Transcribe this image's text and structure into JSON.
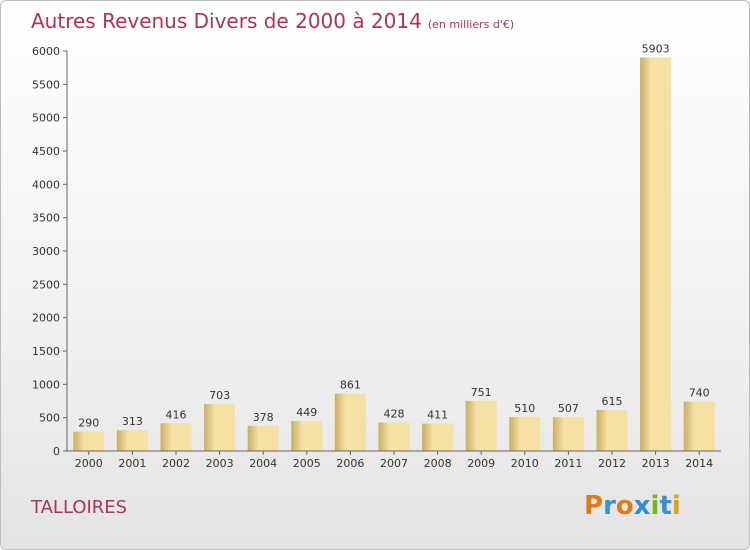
{
  "header": {
    "title": "Autres Revenus Divers de 2000 à 2014",
    "subtitle": "(en milliers d'€)"
  },
  "commune": "TALLOIRES",
  "logo": {
    "text": "Proxiti",
    "letters": [
      {
        "ch": "P",
        "color": "#e07b1a"
      },
      {
        "ch": "r",
        "color": "#3c8fd1"
      },
      {
        "ch": "o",
        "color": "#e07b1a"
      },
      {
        "ch": "x",
        "color": "#2e8fd8"
      },
      {
        "ch": "i",
        "color": "#7ab51d"
      },
      {
        "ch": "t",
        "color": "#3c8fd1"
      },
      {
        "ch": "i",
        "color": "#d8a31a"
      }
    ]
  },
  "chart_data": {
    "type": "bar",
    "categories": [
      "2000",
      "2001",
      "2002",
      "2003",
      "2004",
      "2005",
      "2006",
      "2007",
      "2008",
      "2009",
      "2010",
      "2011",
      "2012",
      "2013",
      "2014"
    ],
    "values": [
      290,
      313,
      416,
      703,
      378,
      449,
      861,
      428,
      411,
      751,
      510,
      507,
      615,
      5903,
      740
    ],
    "title": "Autres Revenus Divers de 2000 à 2014",
    "subtitle": "(en milliers d'€)",
    "ylim": [
      0,
      6000
    ],
    "yticks": [
      0,
      500,
      1000,
      1500,
      2000,
      2500,
      3000,
      3500,
      4000,
      4500,
      5000,
      5500,
      6000
    ],
    "grid": false,
    "bar_color_light": "#f5e1a4",
    "bar_color_dark": "#c9ad63"
  }
}
